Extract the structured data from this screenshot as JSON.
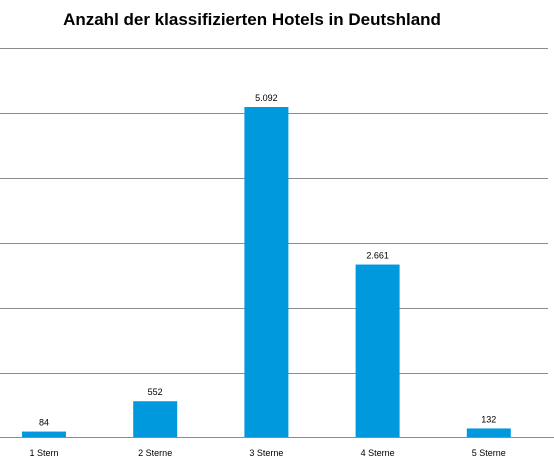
{
  "chart_data": {
    "type": "bar",
    "title": "Anzahl der klassifizierten Hotels in Deutshland",
    "categories": [
      "1 Stern",
      "2 Sterne",
      "3 Sterne",
      "4 Sterne",
      "5 Sterne"
    ],
    "values": [
      84,
      552,
      5092,
      2661,
      132
    ],
    "value_labels": [
      "84",
      "552",
      "5.092",
      "2.661",
      "132"
    ],
    "ylim": [
      0,
      5092
    ],
    "grid": true,
    "bar_color": "#0099DD",
    "gridline_color": "#8C8C8C",
    "legend": "none"
  }
}
